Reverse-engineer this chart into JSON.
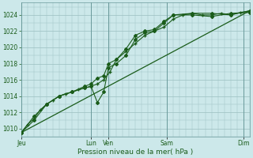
{
  "xlabel": "Pression niveau de la mer( hPa )",
  "bg_color": "#cce8ea",
  "grid_color": "#9bbfc0",
  "line_color": "#1a5c1a",
  "marker_color": "#1a5c1a",
  "ylim": [
    1009.0,
    1025.5
  ],
  "yticks": [
    1010,
    1012,
    1014,
    1016,
    1018,
    1020,
    1022,
    1024
  ],
  "day_labels": [
    "Jeu",
    "Lun",
    "Ven",
    "Sam",
    "Dim"
  ],
  "day_positions": [
    0,
    44,
    55,
    92,
    140
  ],
  "xlim": [
    0,
    144
  ],
  "trend_x": [
    0,
    144
  ],
  "trend_y": [
    1009.5,
    1024.5
  ],
  "series1_x": [
    0,
    4,
    8,
    12,
    16,
    20,
    24,
    28,
    32,
    36,
    40,
    44,
    48,
    52,
    56,
    60,
    66,
    72,
    78,
    84,
    90,
    96,
    102,
    108,
    114,
    120,
    126,
    132,
    138,
    144
  ],
  "series1_y": [
    1009.5,
    1010.5,
    1011.2,
    1012.3,
    1013.0,
    1013.5,
    1014.0,
    1014.3,
    1014.5,
    1014.8,
    1015.0,
    1015.2,
    1015.5,
    1016.0,
    1017.0,
    1018.5,
    1019.5,
    1020.5,
    1021.5,
    1022.0,
    1022.5,
    1023.5,
    1024.0,
    1024.2,
    1024.0,
    1024.0,
    1024.2,
    1024.0,
    1024.3,
    1024.5
  ],
  "series2_x": [
    0,
    8,
    16,
    24,
    32,
    40,
    44,
    48,
    52,
    55,
    60,
    66,
    72,
    78,
    84,
    90,
    96,
    108,
    120,
    132,
    144
  ],
  "series2_y": [
    1009.5,
    1011.5,
    1013.0,
    1014.0,
    1014.5,
    1015.0,
    1015.2,
    1013.2,
    1014.5,
    1017.5,
    1018.0,
    1019.0,
    1021.0,
    1021.8,
    1022.0,
    1023.0,
    1024.0,
    1024.2,
    1024.2,
    1024.0,
    1024.5
  ],
  "series3_x": [
    0,
    8,
    16,
    24,
    32,
    40,
    44,
    48,
    52,
    55,
    60,
    66,
    72,
    78,
    84,
    90,
    96,
    108,
    120,
    132,
    144
  ],
  "series3_y": [
    1009.5,
    1011.0,
    1013.0,
    1014.0,
    1014.5,
    1015.2,
    1015.5,
    1016.2,
    1016.5,
    1018.0,
    1018.5,
    1019.8,
    1021.5,
    1022.0,
    1022.2,
    1023.2,
    1024.0,
    1024.0,
    1023.8,
    1024.2,
    1024.3
  ]
}
